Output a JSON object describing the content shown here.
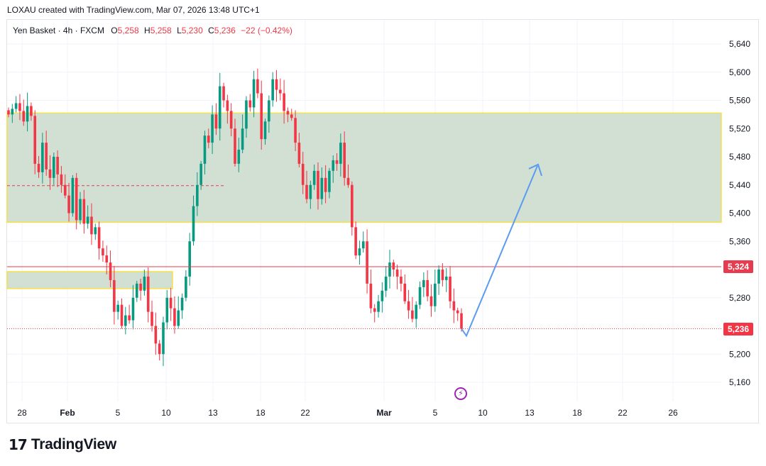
{
  "header": {
    "title": "LOXAU created with TradingView.com, Mar 07, 2026 13:48 UTC+1"
  },
  "legend": {
    "symbol": "Yen Basket · 4h · FXCM",
    "open_label": "O",
    "open": "5,258",
    "high_label": "H",
    "high": "5,258",
    "low_label": "L",
    "low": "5,230",
    "close_label": "C",
    "close": "5,236",
    "change": "−22 (−0.42%)"
  },
  "price_tags": {
    "resistance": "5,324",
    "last": "5,236"
  },
  "logo": {
    "icon": "tradingview-logo-icon",
    "text": "TradingView"
  },
  "icons": {
    "flash": "flash-icon"
  },
  "colors": {
    "up": "#089981",
    "down": "#f23645",
    "zone_fill": "#d1e0d3",
    "zone_border": "#f7e04a",
    "arrow": "#5b9cf0",
    "resistance": "#e53d4f",
    "grid": "#f0f3fa"
  },
  "chart_data": {
    "type": "candlestick",
    "title": "",
    "xlabel": "",
    "ylabel": "",
    "ylim": [
      5130,
      5670
    ],
    "y_ticks": [
      5640,
      5600,
      5560,
      5520,
      5480,
      5440,
      5400,
      5360,
      5280,
      5200,
      5160
    ],
    "x_tick_labels": [
      "28",
      "Feb",
      "5",
      "10",
      "13",
      "18",
      "22",
      "Mar",
      "5",
      "10",
      "13",
      "18",
      "22",
      "26"
    ],
    "last_price": 5236,
    "resistance_level": 5324,
    "supply_zone": [
      5387,
      5542
    ],
    "demand_zone": [
      5293,
      5317
    ],
    "dashed_midline": 5439,
    "projection": {
      "from": 5226,
      "to": 5467
    },
    "price_path": [
      5540,
      5548,
      5556,
      5545,
      5530,
      5552,
      5538,
      5470,
      5458,
      5500,
      5462,
      5450,
      5480,
      5455,
      5440,
      5425,
      5400,
      5450,
      5390,
      5420,
      5385,
      5395,
      5370,
      5380,
      5350,
      5340,
      5330,
      5305,
      5260,
      5270,
      5240,
      5255,
      5248,
      5280,
      5300,
      5290,
      5310,
      5260,
      5240,
      5215,
      5200,
      5245,
      5280,
      5265,
      5240,
      5262,
      5280,
      5310,
      5360,
      5410,
      5440,
      5470,
      5510,
      5500,
      5540,
      5520,
      5580,
      5560,
      5545,
      5520,
      5470,
      5490,
      5520,
      5560,
      5550,
      5590,
      5570,
      5505,
      5530,
      5560,
      5590,
      5575,
      5570,
      5545,
      5540,
      5535,
      5500,
      5470,
      5440,
      5420,
      5440,
      5460,
      5420,
      5450,
      5430,
      5460,
      5475,
      5470,
      5500,
      5450,
      5440,
      5380,
      5340,
      5350,
      5360,
      5300,
      5265,
      5260,
      5275,
      5290,
      5310,
      5330,
      5320,
      5310,
      5300,
      5275,
      5262,
      5250,
      5270,
      5295,
      5305,
      5282,
      5268,
      5300,
      5320,
      5305,
      5310,
      5275,
      5262,
      5258,
      5236
    ]
  }
}
